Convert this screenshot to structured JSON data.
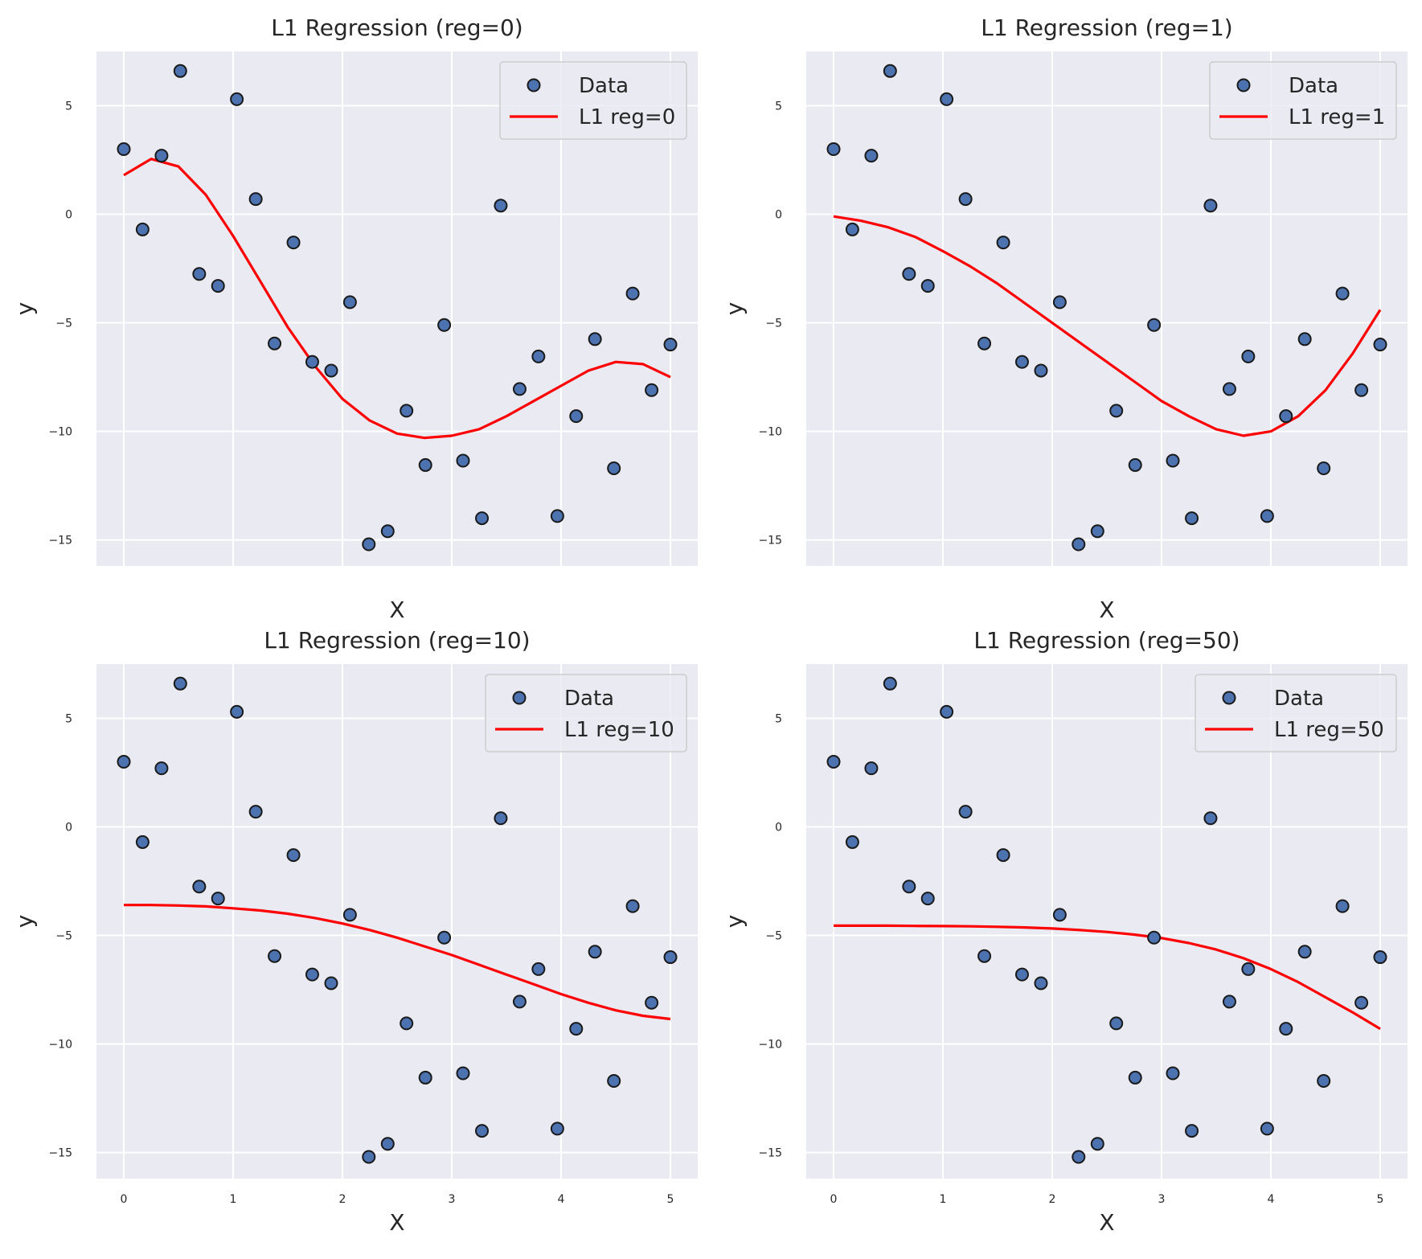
{
  "chart_data": [
    {
      "type": "scatter",
      "title": "L1 Regression (reg=0)",
      "xlabel": "X",
      "ylabel": "y",
      "xlim": [
        -0.25,
        5.25
      ],
      "ylim": [
        -16.2,
        7.5
      ],
      "xticks": [],
      "yticks": [
        5,
        0,
        -5,
        -10,
        -15
      ],
      "ytick_labels": [
        "5",
        "0",
        "−5",
        "−10",
        "−15"
      ],
      "grid": true,
      "legend_position": "top-right",
      "series": [
        {
          "name": "Data",
          "kind": "scatter",
          "color": "#4c72b0"
        },
        {
          "name": "L1 reg=0",
          "kind": "line",
          "color": "#ff0000",
          "x": [
            0,
            0.25,
            0.5,
            0.75,
            1,
            1.25,
            1.5,
            1.75,
            2,
            2.25,
            2.5,
            2.75,
            3,
            3.25,
            3.5,
            3.75,
            4,
            4.25,
            4.5,
            4.75,
            5
          ],
          "y": [
            1.8,
            2.55,
            2.2,
            0.9,
            -1.0,
            -3.1,
            -5.2,
            -7.0,
            -8.5,
            -9.5,
            -10.1,
            -10.3,
            -10.2,
            -9.9,
            -9.3,
            -8.6,
            -7.9,
            -7.2,
            -6.8,
            -6.9,
            -7.5
          ]
        }
      ]
    },
    {
      "type": "scatter",
      "title": "L1 Regression (reg=1)",
      "xlabel": "X",
      "ylabel": "y",
      "xlim": [
        -0.25,
        5.25
      ],
      "ylim": [
        -16.2,
        7.5
      ],
      "xticks": [],
      "yticks": [
        5,
        0,
        -5,
        -10,
        -15
      ],
      "ytick_labels": [
        "5",
        "0",
        "−5",
        "−10",
        "−15"
      ],
      "grid": true,
      "legend_position": "top-right",
      "series": [
        {
          "name": "Data",
          "kind": "scatter",
          "color": "#4c72b0"
        },
        {
          "name": "L1 reg=1",
          "kind": "line",
          "color": "#ff0000",
          "x": [
            0,
            0.25,
            0.5,
            0.75,
            1,
            1.25,
            1.5,
            1.75,
            2,
            2.25,
            2.5,
            2.75,
            3,
            3.25,
            3.5,
            3.75,
            4,
            4.25,
            4.5,
            4.75,
            5
          ],
          "y": [
            -0.1,
            -0.3,
            -0.6,
            -1.05,
            -1.7,
            -2.4,
            -3.2,
            -4.1,
            -5.0,
            -5.9,
            -6.8,
            -7.7,
            -8.6,
            -9.3,
            -9.9,
            -10.2,
            -10.0,
            -9.3,
            -8.1,
            -6.4,
            -4.4
          ]
        }
      ]
    },
    {
      "type": "scatter",
      "title": "L1 Regression (reg=10)",
      "xlabel": "X",
      "ylabel": "y",
      "xlim": [
        -0.25,
        5.25
      ],
      "ylim": [
        -16.2,
        7.5
      ],
      "xticks": [
        0,
        1,
        2,
        3,
        4,
        5
      ],
      "yticks": [
        5,
        0,
        -5,
        -10,
        -15
      ],
      "ytick_labels": [
        "5",
        "0",
        "−5",
        "−10",
        "−15"
      ],
      "grid": true,
      "legend_position": "top-right",
      "series": [
        {
          "name": "Data",
          "kind": "scatter",
          "color": "#4c72b0"
        },
        {
          "name": "L1 reg=10",
          "kind": "line",
          "color": "#ff0000",
          "x": [
            0,
            0.25,
            0.5,
            0.75,
            1,
            1.25,
            1.5,
            1.75,
            2,
            2.25,
            2.5,
            2.75,
            3,
            3.25,
            3.5,
            3.75,
            4,
            4.25,
            4.5,
            4.75,
            5
          ],
          "y": [
            -3.6,
            -3.6,
            -3.62,
            -3.66,
            -3.75,
            -3.85,
            -4.0,
            -4.2,
            -4.45,
            -4.75,
            -5.1,
            -5.5,
            -5.9,
            -6.35,
            -6.8,
            -7.25,
            -7.7,
            -8.1,
            -8.45,
            -8.7,
            -8.85
          ]
        }
      ]
    },
    {
      "type": "scatter",
      "title": "L1 Regression (reg=50)",
      "xlabel": "X",
      "ylabel": "y",
      "xlim": [
        -0.25,
        5.25
      ],
      "ylim": [
        -16.2,
        7.5
      ],
      "xticks": [
        0,
        1,
        2,
        3,
        4,
        5
      ],
      "yticks": [
        5,
        0,
        -5,
        -10,
        -15
      ],
      "ytick_labels": [
        "5",
        "0",
        "−5",
        "−10",
        "−15"
      ],
      "grid": true,
      "legend_position": "top-right",
      "series": [
        {
          "name": "Data",
          "kind": "scatter",
          "color": "#4c72b0"
        },
        {
          "name": "L1 reg=50",
          "kind": "line",
          "color": "#ff0000",
          "x": [
            0,
            0.25,
            0.5,
            0.75,
            1,
            1.25,
            1.5,
            1.75,
            2,
            2.25,
            2.5,
            2.75,
            3,
            3.25,
            3.5,
            3.75,
            4,
            4.25,
            4.5,
            4.75,
            5
          ],
          "y": [
            -4.55,
            -4.55,
            -4.55,
            -4.56,
            -4.57,
            -4.58,
            -4.6,
            -4.63,
            -4.68,
            -4.75,
            -4.84,
            -4.96,
            -5.12,
            -5.35,
            -5.65,
            -6.05,
            -6.55,
            -7.15,
            -7.85,
            -8.55,
            -9.3
          ]
        }
      ]
    }
  ],
  "shared_scatter_points": {
    "x": [
      0,
      0.172,
      0.345,
      0.517,
      0.69,
      0.862,
      1.034,
      1.207,
      1.379,
      1.552,
      1.724,
      1.897,
      2.069,
      2.241,
      2.414,
      2.586,
      2.759,
      2.931,
      3.103,
      3.276,
      3.448,
      3.621,
      3.793,
      3.966,
      4.138,
      4.31,
      4.483,
      4.655,
      4.828,
      5.0
    ],
    "y": [
      3.0,
      -0.7,
      2.7,
      6.6,
      -2.75,
      -3.3,
      5.3,
      0.7,
      -5.95,
      -1.3,
      -6.8,
      -7.2,
      -4.05,
      -15.2,
      -14.6,
      -9.05,
      -11.55,
      -5.1,
      -11.35,
      -14.0,
      0.4,
      -8.05,
      -6.55,
      -13.9,
      -9.3,
      -5.75,
      -11.7,
      -3.65,
      -8.1,
      -6.0
    ]
  }
}
